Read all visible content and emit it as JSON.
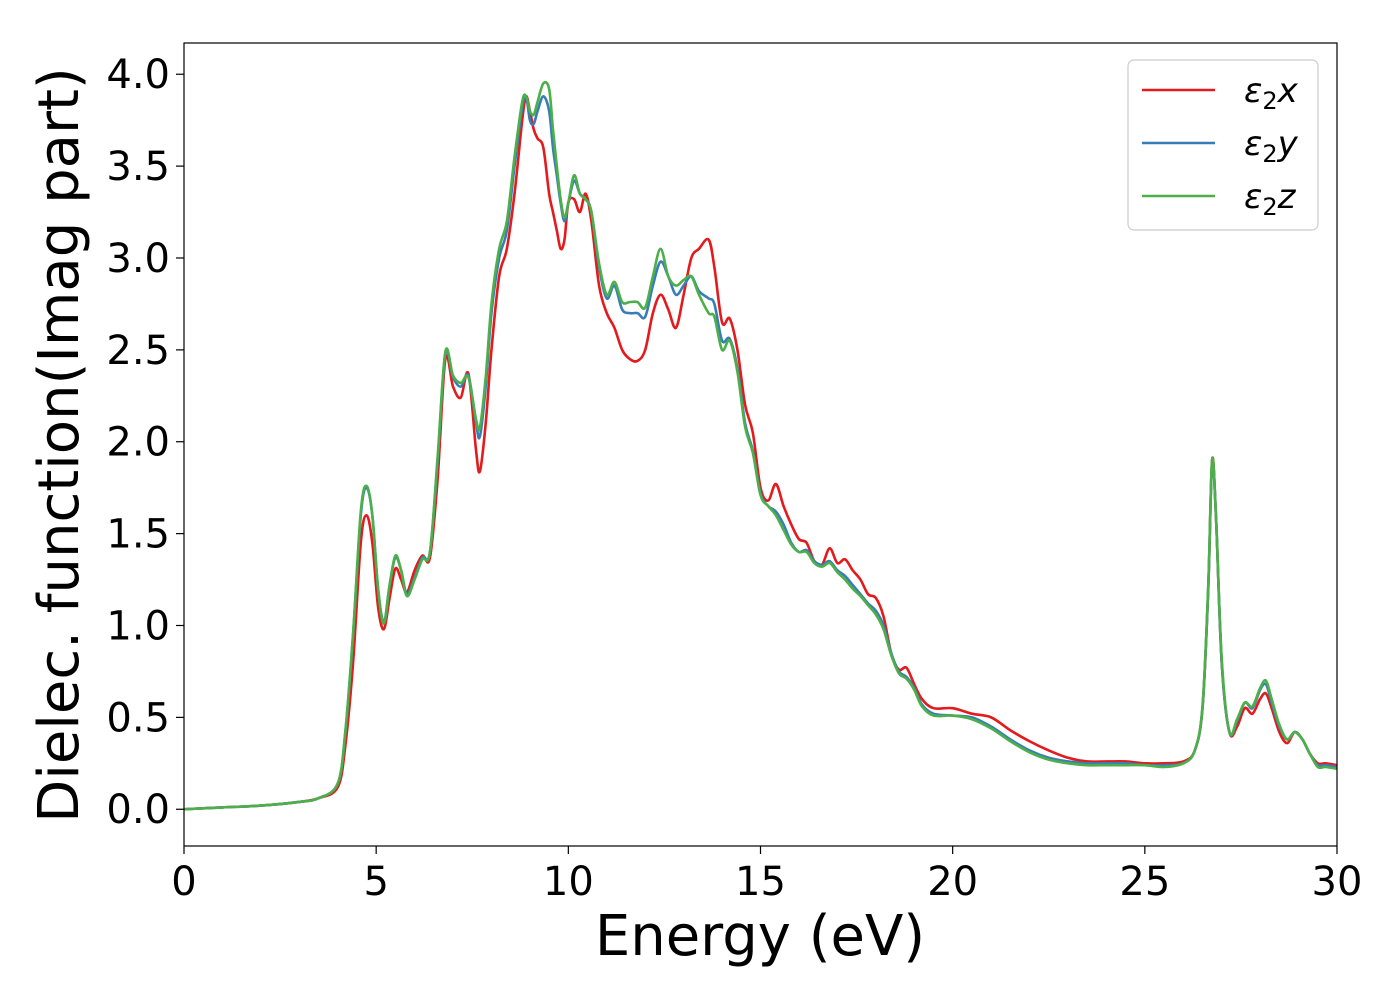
{
  "chart_data": {
    "type": "line",
    "xlabel": "Energy (eV)",
    "ylabel": "Dielec. function(Imag part)",
    "xlim": [
      0,
      30
    ],
    "ylim": [
      -0.2,
      4.17
    ],
    "xticks": [
      0,
      5,
      10,
      15,
      20,
      25,
      30
    ],
    "xtick_labels": [
      "0",
      "5",
      "10",
      "15",
      "20",
      "25",
      "30"
    ],
    "yticks": [
      0.0,
      0.5,
      1.0,
      1.5,
      2.0,
      2.5,
      3.0,
      3.5,
      4.0
    ],
    "ytick_labels": [
      "0.0",
      "0.5",
      "1.0",
      "1.5",
      "2.0",
      "2.5",
      "3.0",
      "3.5",
      "4.0"
    ],
    "grid": false,
    "legend_position": "top-right",
    "series": [
      {
        "name": "ε₂x",
        "legend_main": "ε",
        "legend_sub": "2",
        "legend_suffix": "x",
        "color": "#e41a1c",
        "x": [
          0,
          1,
          2,
          3,
          3.5,
          4,
          4.2,
          4.4,
          4.6,
          4.75,
          4.9,
          5.05,
          5.2,
          5.35,
          5.5,
          5.65,
          5.8,
          6.0,
          6.2,
          6.4,
          6.6,
          6.8,
          7.0,
          7.2,
          7.4,
          7.6,
          7.7,
          7.85,
          8.0,
          8.2,
          8.4,
          8.6,
          8.8,
          8.9,
          9.0,
          9.1,
          9.2,
          9.35,
          9.5,
          9.6,
          9.7,
          9.8,
          9.9,
          10.0,
          10.15,
          10.3,
          10.45,
          10.6,
          10.8,
          11.0,
          11.2,
          11.4,
          11.6,
          11.8,
          12.0,
          12.2,
          12.4,
          12.6,
          12.8,
          13.0,
          13.2,
          13.4,
          13.65,
          13.8,
          14.0,
          14.2,
          14.4,
          14.6,
          14.8,
          15.0,
          15.2,
          15.4,
          15.6,
          15.8,
          16.0,
          16.2,
          16.4,
          16.6,
          16.8,
          17.0,
          17.2,
          17.4,
          17.6,
          17.8,
          18.0,
          18.2,
          18.4,
          18.6,
          18.8,
          19.0,
          19.2,
          19.5,
          20.0,
          20.5,
          21.0,
          21.5,
          22.0,
          22.5,
          23.0,
          23.5,
          24.0,
          24.5,
          25.0,
          25.5,
          26.0,
          26.3,
          26.5,
          26.65,
          26.75,
          26.85,
          27.0,
          27.2,
          27.4,
          27.6,
          27.8,
          28.0,
          28.15,
          28.3,
          28.5,
          28.7,
          28.9,
          29.1,
          29.3,
          29.5,
          29.7,
          30.0
        ],
        "y": [
          0.0,
          0.01,
          0.02,
          0.04,
          0.06,
          0.12,
          0.35,
          0.8,
          1.45,
          1.6,
          1.45,
          1.1,
          0.98,
          1.15,
          1.31,
          1.25,
          1.18,
          1.3,
          1.38,
          1.37,
          1.8,
          2.45,
          2.3,
          2.24,
          2.37,
          1.95,
          1.84,
          2.1,
          2.5,
          2.9,
          3.05,
          3.35,
          3.75,
          3.88,
          3.8,
          3.7,
          3.65,
          3.6,
          3.35,
          3.25,
          3.15,
          3.05,
          3.1,
          3.3,
          3.32,
          3.25,
          3.35,
          3.2,
          2.85,
          2.7,
          2.62,
          2.5,
          2.45,
          2.44,
          2.5,
          2.7,
          2.8,
          2.72,
          2.62,
          2.8,
          3.0,
          3.05,
          3.1,
          2.95,
          2.65,
          2.67,
          2.5,
          2.2,
          2.05,
          1.75,
          1.68,
          1.77,
          1.65,
          1.55,
          1.47,
          1.45,
          1.35,
          1.33,
          1.42,
          1.34,
          1.36,
          1.3,
          1.25,
          1.17,
          1.15,
          1.05,
          0.85,
          0.76,
          0.77,
          0.68,
          0.6,
          0.55,
          0.55,
          0.52,
          0.5,
          0.43,
          0.37,
          0.32,
          0.28,
          0.26,
          0.26,
          0.26,
          0.25,
          0.25,
          0.26,
          0.32,
          0.55,
          1.2,
          1.9,
          1.6,
          0.8,
          0.42,
          0.45,
          0.55,
          0.52,
          0.6,
          0.63,
          0.55,
          0.42,
          0.36,
          0.42,
          0.38,
          0.3,
          0.25,
          0.25,
          0.24
        ]
      },
      {
        "name": "ε₂y",
        "legend_main": "ε",
        "legend_sub": "2",
        "legend_suffix": "y",
        "color": "#377eb8",
        "x": [
          0,
          1,
          2,
          3,
          3.5,
          4,
          4.2,
          4.4,
          4.6,
          4.75,
          4.9,
          5.05,
          5.2,
          5.35,
          5.5,
          5.65,
          5.8,
          6.0,
          6.2,
          6.4,
          6.6,
          6.8,
          7.0,
          7.2,
          7.4,
          7.6,
          7.7,
          7.85,
          8.0,
          8.2,
          8.4,
          8.6,
          8.8,
          8.9,
          9.0,
          9.1,
          9.2,
          9.35,
          9.5,
          9.6,
          9.7,
          9.8,
          9.9,
          10.0,
          10.15,
          10.3,
          10.45,
          10.6,
          10.8,
          11.0,
          11.2,
          11.4,
          11.6,
          11.8,
          12.0,
          12.2,
          12.4,
          12.6,
          12.8,
          13.0,
          13.2,
          13.4,
          13.65,
          13.8,
          14.0,
          14.2,
          14.4,
          14.6,
          14.8,
          15.0,
          15.2,
          15.4,
          15.6,
          15.8,
          16.0,
          16.2,
          16.4,
          16.6,
          16.8,
          17.0,
          17.2,
          17.4,
          17.6,
          17.8,
          18.0,
          18.2,
          18.4,
          18.6,
          18.8,
          19.0,
          19.2,
          19.5,
          20.0,
          20.5,
          21.0,
          21.5,
          22.0,
          22.5,
          23.0,
          23.5,
          24.0,
          24.5,
          25.0,
          25.5,
          26.0,
          26.3,
          26.5,
          26.65,
          26.75,
          26.85,
          27.0,
          27.2,
          27.4,
          27.6,
          27.8,
          28.0,
          28.15,
          28.3,
          28.5,
          28.7,
          28.9,
          29.1,
          29.3,
          29.5,
          29.7,
          30.0
        ],
        "y": [
          0.0,
          0.01,
          0.02,
          0.04,
          0.06,
          0.14,
          0.42,
          0.95,
          1.6,
          1.75,
          1.6,
          1.2,
          1.02,
          1.22,
          1.37,
          1.3,
          1.17,
          1.26,
          1.37,
          1.4,
          1.9,
          2.48,
          2.35,
          2.3,
          2.36,
          2.1,
          2.03,
          2.3,
          2.7,
          3.0,
          3.15,
          3.5,
          3.82,
          3.88,
          3.75,
          3.73,
          3.8,
          3.88,
          3.8,
          3.6,
          3.45,
          3.3,
          3.2,
          3.3,
          3.42,
          3.35,
          3.32,
          3.25,
          2.95,
          2.78,
          2.85,
          2.72,
          2.7,
          2.7,
          2.68,
          2.85,
          2.98,
          2.9,
          2.8,
          2.85,
          2.9,
          2.82,
          2.78,
          2.75,
          2.55,
          2.56,
          2.4,
          2.1,
          1.95,
          1.72,
          1.65,
          1.62,
          1.55,
          1.45,
          1.4,
          1.41,
          1.35,
          1.33,
          1.35,
          1.3,
          1.27,
          1.22,
          1.17,
          1.12,
          1.08,
          1.0,
          0.85,
          0.75,
          0.72,
          0.66,
          0.57,
          0.52,
          0.51,
          0.5,
          0.45,
          0.38,
          0.32,
          0.28,
          0.26,
          0.25,
          0.25,
          0.25,
          0.24,
          0.24,
          0.25,
          0.32,
          0.55,
          1.2,
          1.88,
          1.6,
          0.8,
          0.42,
          0.48,
          0.58,
          0.55,
          0.65,
          0.68,
          0.58,
          0.45,
          0.38,
          0.42,
          0.38,
          0.3,
          0.24,
          0.24,
          0.23
        ]
      },
      {
        "name": "ε₂z",
        "legend_main": "ε",
        "legend_sub": "2",
        "legend_suffix": "z",
        "color": "#4daf4a",
        "x": [
          0,
          1,
          2,
          3,
          3.5,
          4,
          4.2,
          4.4,
          4.6,
          4.75,
          4.9,
          5.05,
          5.2,
          5.35,
          5.5,
          5.65,
          5.8,
          6.0,
          6.2,
          6.4,
          6.6,
          6.8,
          7.0,
          7.2,
          7.4,
          7.6,
          7.7,
          7.85,
          8.0,
          8.2,
          8.4,
          8.6,
          8.8,
          8.9,
          9.0,
          9.1,
          9.2,
          9.35,
          9.5,
          9.6,
          9.7,
          9.8,
          9.9,
          10.0,
          10.15,
          10.3,
          10.45,
          10.6,
          10.8,
          11.0,
          11.2,
          11.4,
          11.6,
          11.8,
          12.0,
          12.2,
          12.4,
          12.6,
          12.8,
          13.0,
          13.2,
          13.4,
          13.65,
          13.8,
          14.0,
          14.2,
          14.4,
          14.6,
          14.8,
          15.0,
          15.2,
          15.4,
          15.6,
          15.8,
          16.0,
          16.2,
          16.4,
          16.6,
          16.8,
          17.0,
          17.2,
          17.4,
          17.6,
          17.8,
          18.0,
          18.2,
          18.4,
          18.6,
          18.8,
          19.0,
          19.2,
          19.5,
          20.0,
          20.5,
          21.0,
          21.5,
          22.0,
          22.5,
          23.0,
          23.5,
          24.0,
          24.5,
          25.0,
          25.5,
          26.0,
          26.3,
          26.5,
          26.65,
          26.75,
          26.85,
          27.0,
          27.2,
          27.4,
          27.6,
          27.8,
          28.0,
          28.15,
          28.3,
          28.5,
          28.7,
          28.9,
          29.1,
          29.3,
          29.5,
          29.7,
          30.0
        ],
        "y": [
          0.0,
          0.01,
          0.02,
          0.04,
          0.06,
          0.14,
          0.43,
          0.96,
          1.62,
          1.76,
          1.6,
          1.2,
          1.01,
          1.22,
          1.38,
          1.3,
          1.16,
          1.25,
          1.36,
          1.4,
          1.92,
          2.49,
          2.36,
          2.32,
          2.35,
          2.12,
          2.08,
          2.35,
          2.75,
          3.05,
          3.2,
          3.55,
          3.85,
          3.88,
          3.8,
          3.78,
          3.85,
          3.95,
          3.92,
          3.7,
          3.5,
          3.32,
          3.22,
          3.3,
          3.45,
          3.35,
          3.32,
          3.25,
          2.97,
          2.8,
          2.87,
          2.76,
          2.76,
          2.76,
          2.73,
          2.9,
          3.05,
          2.9,
          2.85,
          2.88,
          2.9,
          2.8,
          2.7,
          2.68,
          2.5,
          2.55,
          2.38,
          2.08,
          1.94,
          1.71,
          1.65,
          1.6,
          1.52,
          1.44,
          1.4,
          1.4,
          1.34,
          1.32,
          1.34,
          1.29,
          1.25,
          1.2,
          1.16,
          1.11,
          1.06,
          0.98,
          0.84,
          0.74,
          0.71,
          0.65,
          0.56,
          0.51,
          0.51,
          0.49,
          0.44,
          0.37,
          0.31,
          0.27,
          0.25,
          0.24,
          0.24,
          0.24,
          0.24,
          0.23,
          0.25,
          0.32,
          0.56,
          1.22,
          1.9,
          1.6,
          0.82,
          0.42,
          0.49,
          0.58,
          0.56,
          0.66,
          0.7,
          0.6,
          0.46,
          0.38,
          0.42,
          0.38,
          0.3,
          0.23,
          0.23,
          0.22
        ]
      }
    ]
  }
}
